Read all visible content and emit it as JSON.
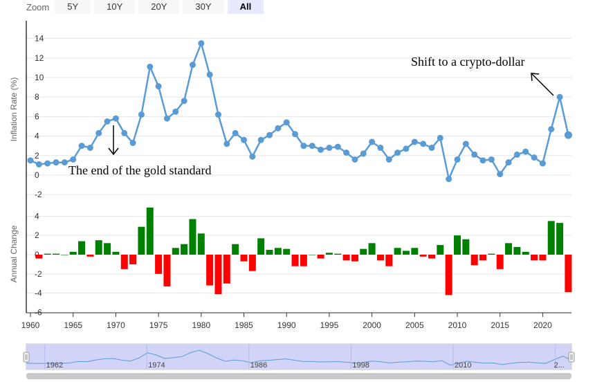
{
  "zoom": {
    "label": "Zoom",
    "buttons": [
      "5Y",
      "10Y",
      "20Y",
      "30Y",
      "All"
    ],
    "selected": "All"
  },
  "colors": {
    "line": "#5b9bd5",
    "positive": "#008000",
    "negative": "#ff0000",
    "navigator_fill": "#c9ccf5",
    "navigator_line": "#5b9bd5"
  },
  "chart_data": [
    {
      "type": "line",
      "ylabel": "Inflation Rate (%)",
      "xlabel": "",
      "ylim": [
        -2,
        14
      ],
      "y_ticks": [
        -2,
        0,
        2,
        4,
        6,
        8,
        10,
        12,
        14
      ],
      "grid": true,
      "x": [
        1960,
        1961,
        1962,
        1963,
        1964,
        1965,
        1966,
        1967,
        1968,
        1969,
        1970,
        1971,
        1972,
        1973,
        1974,
        1975,
        1976,
        1977,
        1978,
        1979,
        1980,
        1981,
        1982,
        1983,
        1984,
        1985,
        1986,
        1987,
        1988,
        1989,
        1990,
        1991,
        1992,
        1993,
        1994,
        1995,
        1996,
        1997,
        1998,
        1999,
        2000,
        2001,
        2002,
        2003,
        2004,
        2005,
        2006,
        2007,
        2008,
        2009,
        2010,
        2011,
        2012,
        2013,
        2014,
        2015,
        2016,
        2017,
        2018,
        2019,
        2020,
        2021,
        2022,
        2023
      ],
      "series": [
        {
          "values": [
            1.5,
            1.1,
            1.2,
            1.3,
            1.3,
            1.6,
            3.0,
            2.8,
            4.3,
            5.5,
            5.8,
            4.3,
            3.3,
            6.2,
            11.1,
            9.1,
            5.8,
            6.5,
            7.6,
            11.3,
            13.5,
            10.3,
            6.2,
            3.2,
            4.3,
            3.6,
            1.9,
            3.6,
            4.1,
            4.8,
            5.4,
            4.2,
            3.0,
            3.0,
            2.6,
            2.8,
            2.9,
            2.3,
            1.6,
            2.2,
            3.4,
            2.8,
            1.6,
            2.3,
            2.7,
            3.4,
            3.2,
            2.8,
            3.8,
            -0.4,
            1.6,
            3.2,
            2.1,
            1.5,
            1.6,
            0.1,
            1.3,
            2.1,
            2.4,
            1.8,
            1.2,
            4.7,
            8.0,
            4.1
          ]
        }
      ],
      "annotations": [
        {
          "text": "The end of the gold standard",
          "year": 1970
        },
        {
          "text": "Shift to a crypto-dollar",
          "year": 2022
        }
      ]
    },
    {
      "type": "bar",
      "ylabel": "Annual Change",
      "ylim": [
        -6,
        6
      ],
      "y_ticks": [
        -6,
        -4,
        -2,
        0,
        2,
        4
      ],
      "x": [
        1961,
        1962,
        1963,
        1964,
        1965,
        1966,
        1967,
        1968,
        1969,
        1970,
        1971,
        1972,
        1973,
        1974,
        1975,
        1976,
        1977,
        1978,
        1979,
        1980,
        1981,
        1982,
        1983,
        1984,
        1985,
        1986,
        1987,
        1988,
        1989,
        1990,
        1991,
        1992,
        1993,
        1994,
        1995,
        1996,
        1997,
        1998,
        1999,
        2000,
        2001,
        2002,
        2003,
        2004,
        2005,
        2006,
        2007,
        2008,
        2009,
        2010,
        2011,
        2012,
        2013,
        2014,
        2015,
        2016,
        2017,
        2018,
        2019,
        2020,
        2021,
        2022,
        2023
      ],
      "values": [
        -0.4,
        0.1,
        0.1,
        0.0,
        0.3,
        1.4,
        -0.2,
        1.5,
        1.2,
        0.3,
        -1.5,
        -1.0,
        2.9,
        4.9,
        -2.0,
        -3.3,
        0.7,
        1.1,
        3.7,
        2.2,
        -3.2,
        -4.1,
        -3.0,
        1.1,
        -0.7,
        -1.7,
        1.7,
        0.5,
        0.7,
        0.6,
        -1.2,
        -1.2,
        0.0,
        -0.4,
        0.2,
        0.1,
        -0.6,
        -0.7,
        0.6,
        1.2,
        -0.6,
        -1.2,
        0.7,
        0.4,
        0.7,
        -0.2,
        -0.4,
        1.0,
        -4.2,
        2.0,
        1.6,
        -1.1,
        -0.6,
        0.1,
        -1.5,
        1.2,
        0.8,
        0.3,
        -0.6,
        -0.6,
        3.5,
        3.3,
        -3.9
      ]
    }
  ],
  "x_axis": {
    "ticks": [
      1960,
      1965,
      1970,
      1975,
      1980,
      1985,
      1990,
      1995,
      2000,
      2005,
      2010,
      2015,
      2020
    ]
  },
  "navigator": {
    "labels": [
      "1962",
      "1974",
      "1986",
      "1998",
      "2010",
      "2..."
    ]
  }
}
